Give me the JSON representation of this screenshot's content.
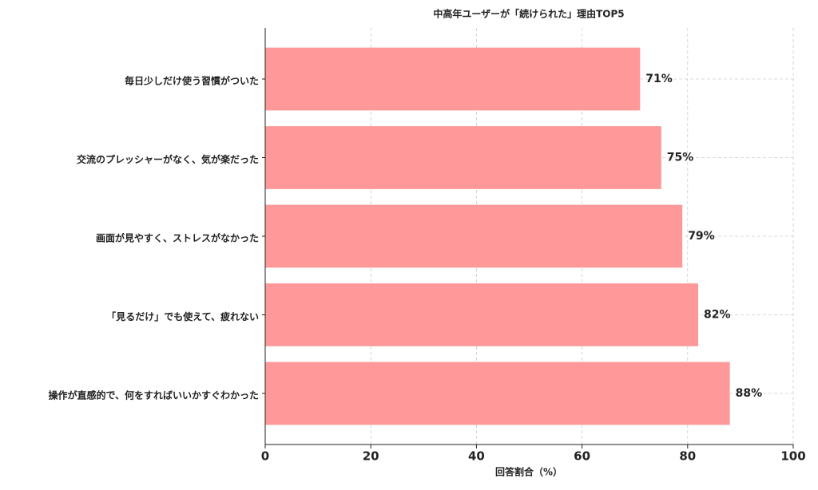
{
  "chart_data": {
    "type": "barh",
    "title": "中高年ユーザーが「続けられた」理由TOP5",
    "xlabel": "回答割合（%）",
    "categories": [
      "毎日少しだけ使う習慣がついた",
      "交流のプレッシャーがなく、気が楽だった",
      "画面が見やすく、ストレスがなかった",
      "「見るだけ」でも使えて、疲れない",
      "操作が直感的で、何をすればいいかすぐわかった"
    ],
    "values": [
      71,
      75,
      79,
      82,
      88
    ],
    "value_labels": [
      "71%",
      "75%",
      "79%",
      "82%",
      "88%"
    ],
    "color": "#ff9999",
    "xlim": [
      0,
      100
    ],
    "xticks": [
      0,
      20,
      40,
      60,
      80,
      100
    ],
    "grid": true
  }
}
